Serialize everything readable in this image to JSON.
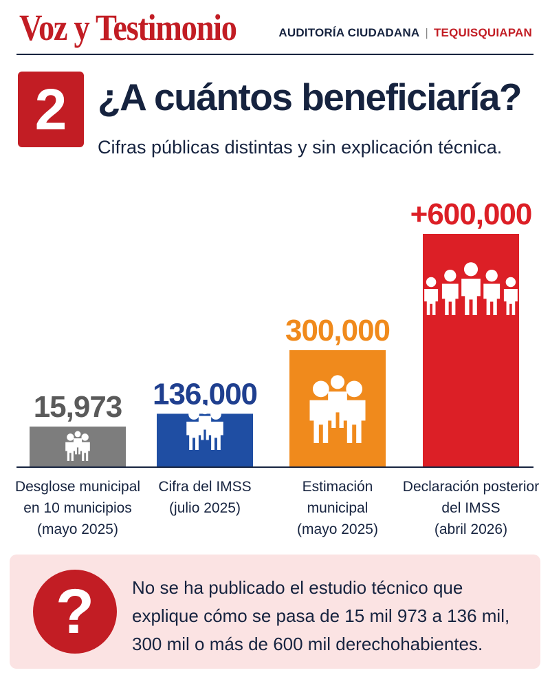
{
  "header": {
    "brand": "Voz y Testimonio",
    "section": "AUDITORÍA CIUDADANA",
    "location": "TEQUISQUIAPAN"
  },
  "title_block": {
    "number": "2",
    "title": "¿A cuántos beneficiaría?",
    "subtitle": "Cifras públicas distintas y sin explicación técnica."
  },
  "chart_data": {
    "type": "bar",
    "categories": [
      "Desglose municipal en 10 municipios (mayo 2025)",
      "Cifra del IMSS (julio 2025)",
      "Estimación municipal (mayo 2025)",
      "Declaración posterior del IMSS (abril 2026)"
    ],
    "category_lines": [
      [
        "Desglose municipal",
        "en 10 municipios",
        "(mayo 2025)"
      ],
      [
        "Cifra del IMSS",
        "(julio 2025)"
      ],
      [
        "Estimación",
        "municipal",
        "(mayo 2025)"
      ],
      [
        "Declaración posterior",
        "del IMSS",
        "(abril 2026)"
      ]
    ],
    "values": [
      15973,
      136000,
      300000,
      600000
    ],
    "data_labels": [
      "15,973",
      "136,000",
      "300,000",
      "+600,000"
    ],
    "colors": [
      "#7d7d7d",
      "#1f4ea3",
      "#f08a1c",
      "#dc1f26"
    ],
    "label_colors": [
      "#5a5a5a",
      "#1f3f8f",
      "#f08a1c",
      "#dc1f26"
    ],
    "icons": [
      "people-group-3-icon",
      "people-group-3-icon",
      "people-group-3-icon",
      "people-group-5-icon"
    ],
    "ylim": [
      0,
      600000
    ],
    "grid": false,
    "legend": "none"
  },
  "note": {
    "icon": "question-mark-icon",
    "text": "No se ha publicado el estudio técnico que explique cómo se pasa de 15 mil 973 a 136 mil, 300 mil o más de 600 mil derechohabientes."
  }
}
